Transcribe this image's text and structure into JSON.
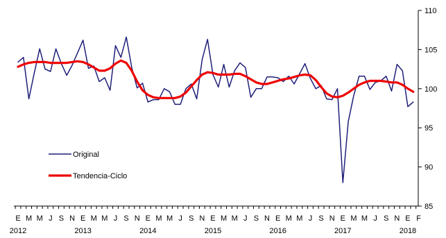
{
  "chart_data": {
    "type": "line",
    "ylim": [
      85,
      110
    ],
    "yticks": [
      85,
      90,
      95,
      100,
      105,
      110
    ],
    "y_axis_side": "right",
    "grid": false,
    "legend_position": "center-left",
    "month_labels": [
      "E",
      "M",
      "M",
      "J",
      "S",
      "N",
      "E",
      "M",
      "M",
      "J",
      "S",
      "N",
      "E",
      "M",
      "M",
      "J",
      "S",
      "N",
      "E",
      "M",
      "M",
      "J",
      "S",
      "N",
      "E",
      "M",
      "M",
      "J",
      "S",
      "N",
      "E",
      "M",
      "M",
      "J",
      "S",
      "N",
      "E",
      "F"
    ],
    "year_labels": [
      {
        "label": "2012",
        "month_index": 0
      },
      {
        "label": "2013",
        "month_index": 12
      },
      {
        "label": "2014",
        "month_index": 24
      },
      {
        "label": "2015",
        "month_index": 36
      },
      {
        "label": "2016",
        "month_index": 48
      },
      {
        "label": "2017",
        "month_index": 60
      },
      {
        "label": "2018",
        "month_index": 72
      }
    ],
    "series": [
      {
        "name": "Original",
        "color": "#1f1f7a",
        "values": [
          103.4,
          104.0,
          98.7,
          102.0,
          105.1,
          102.5,
          102.2,
          105.1,
          103.2,
          101.7,
          103.0,
          104.6,
          106.2,
          102.6,
          102.9,
          100.9,
          101.4,
          99.8,
          105.5,
          104.0,
          106.6,
          102.7,
          100.1,
          100.7,
          98.3,
          98.6,
          98.6,
          100.0,
          99.6,
          98.0,
          98.0,
          100.0,
          100.6,
          98.7,
          103.7,
          106.3,
          101.8,
          100.2,
          103.1,
          100.2,
          102.3,
          103.3,
          102.7,
          98.9,
          100.0,
          100.0,
          101.5,
          101.5,
          101.4,
          100.9,
          101.6,
          100.6,
          101.9,
          103.2,
          101.3,
          100.0,
          100.4,
          98.7,
          98.6,
          100.0,
          88.0,
          95.8,
          99.1,
          101.6,
          101.6,
          99.9,
          100.8,
          101.0,
          101.6,
          99.7,
          103.1,
          102.3,
          97.7,
          98.3
        ]
      },
      {
        "name": "Tendencia-Ciclo",
        "color": "#ee0000",
        "values": [
          102.8,
          103.1,
          103.3,
          103.4,
          103.4,
          103.4,
          103.3,
          103.3,
          103.3,
          103.3,
          103.4,
          103.5,
          103.4,
          103.1,
          102.7,
          102.3,
          102.3,
          102.6,
          103.2,
          103.6,
          103.3,
          102.3,
          100.9,
          99.8,
          99.2,
          98.9,
          98.8,
          98.8,
          98.8,
          98.8,
          99.0,
          99.5,
          100.3,
          101.1,
          101.8,
          102.1,
          102.0,
          101.8,
          101.8,
          101.8,
          101.9,
          101.9,
          101.6,
          101.2,
          100.8,
          100.6,
          100.6,
          100.8,
          101.0,
          101.2,
          101.3,
          101.5,
          101.7,
          101.8,
          101.7,
          101.1,
          100.2,
          99.4,
          99.0,
          98.9,
          99.1,
          99.5,
          100.0,
          100.5,
          100.8,
          101.0,
          101.0,
          101.0,
          100.9,
          100.8,
          100.8,
          100.5,
          100.0,
          99.6
        ]
      }
    ]
  }
}
